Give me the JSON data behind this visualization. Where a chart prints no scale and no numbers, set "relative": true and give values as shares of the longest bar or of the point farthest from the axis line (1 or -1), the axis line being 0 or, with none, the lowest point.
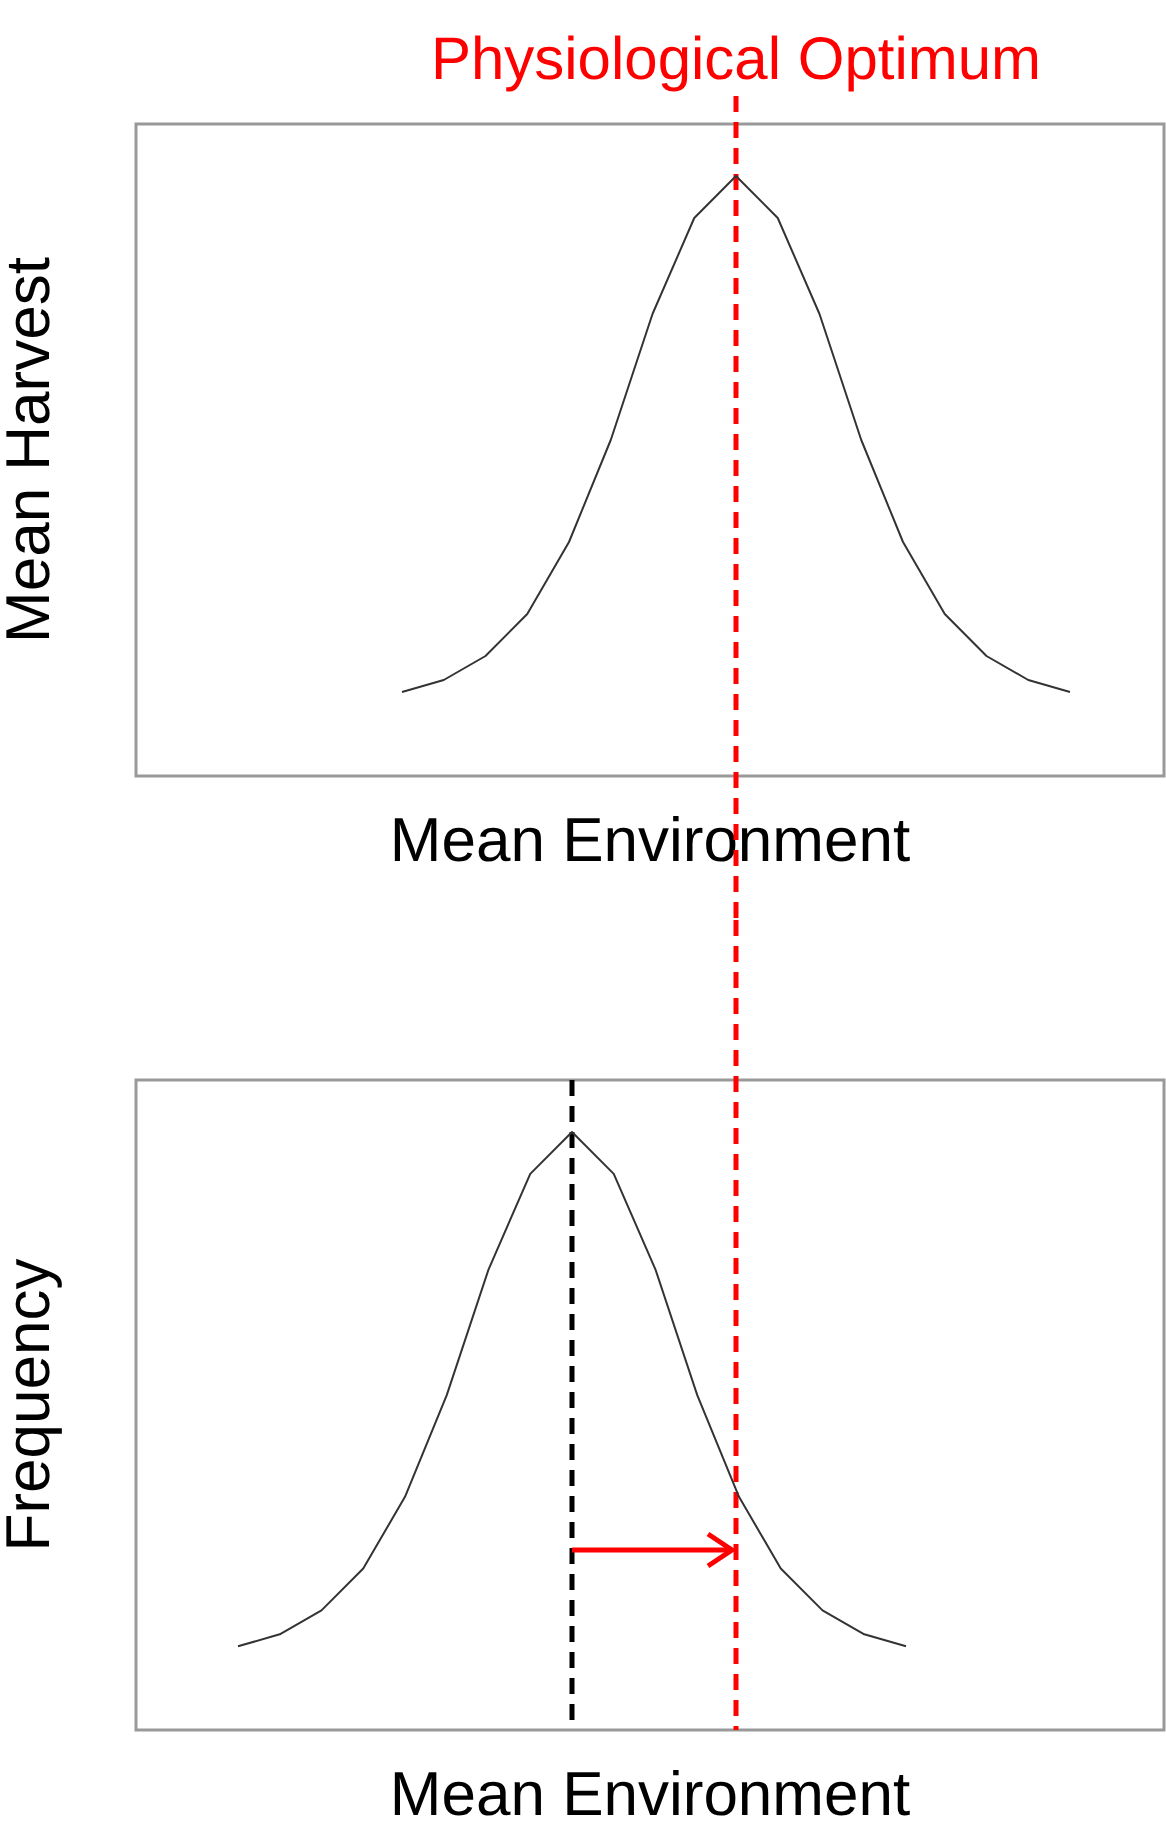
{
  "chart_data": [
    {
      "type": "line",
      "relative": true,
      "xlabel": "Mean Environment",
      "ylabel": "Mean Harvest",
      "grid": false,
      "marker": "none",
      "line_style": "solid",
      "categories": [
        null,
        null,
        null,
        null,
        null,
        null,
        null,
        null,
        null,
        null,
        null,
        null,
        null,
        null,
        null,
        null,
        null
      ],
      "series": [
        {
          "color": "#333333",
          "values": [
            0.14,
            0.16,
            0.2,
            0.27,
            0.39,
            0.56,
            0.77,
            0.93,
            1,
            0.93,
            0.77,
            0.56,
            0.39,
            0.27,
            0.2,
            0.16,
            0.14
          ]
        }
      ],
      "annotations": [
        "Physiological Optimum"
      ]
    },
    {
      "type": "line",
      "relative": true,
      "xlabel": "Mean Environment",
      "ylabel": "Frequency",
      "grid": false,
      "marker": "none",
      "line_style": "solid",
      "categories": [
        null,
        null,
        null,
        null,
        null,
        null,
        null,
        null,
        null,
        null,
        null,
        null,
        null,
        null,
        null,
        null,
        null
      ],
      "series": [
        {
          "color": "#333333",
          "values": [
            0.14,
            0.16,
            0.2,
            0.27,
            0.39,
            0.56,
            0.77,
            0.93,
            1,
            0.93,
            0.77,
            0.56,
            0.39,
            0.27,
            0.2,
            0.16,
            0.14
          ]
        }
      ]
    }
  ]
}
